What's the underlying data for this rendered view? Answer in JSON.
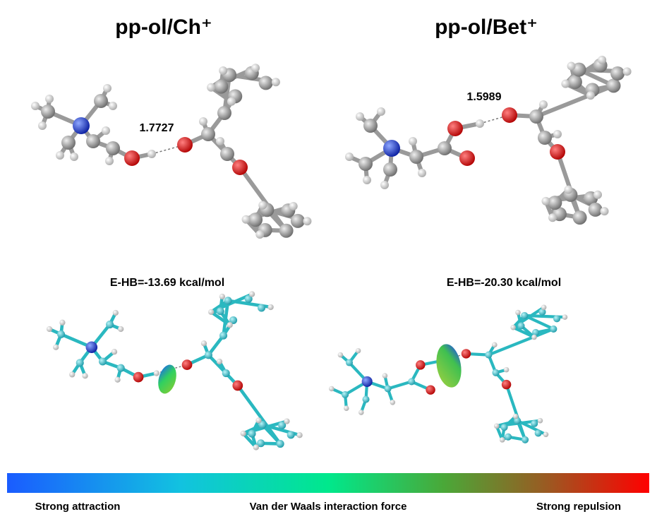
{
  "panels": [
    {
      "title": "pp-ol/Ch⁺",
      "distance": "1.7727",
      "energy": "E-HB=-13.69 kcal/mol"
    },
    {
      "title": "pp-ol/Bet⁺",
      "distance": "1.5989",
      "energy": "E-HB=-20.30 kcal/mol"
    }
  ],
  "color_scale": {
    "labels": [
      "Strong attraction",
      "Van der Waals interaction force",
      "Strong repulsion"
    ]
  }
}
